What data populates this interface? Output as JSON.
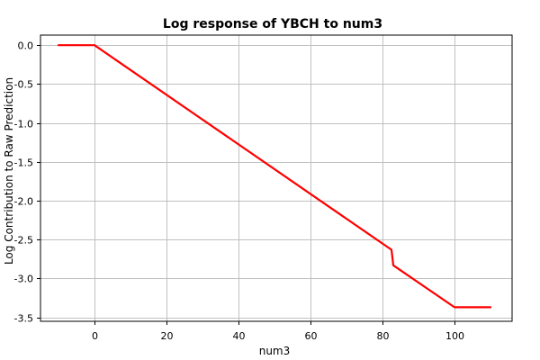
{
  "chart_data": {
    "type": "line",
    "title": "Log response of YBCH to num3",
    "xlabel": "num3",
    "ylabel": "Log Contribution to Raw Prediction",
    "xlim": [
      -15,
      116
    ],
    "ylim": [
      -3.55,
      0.13
    ],
    "x_ticks": [
      0,
      20,
      40,
      60,
      80,
      100
    ],
    "x_tick_labels": [
      "0",
      "20",
      "40",
      "60",
      "80",
      "100"
    ],
    "y_ticks": [
      0.0,
      -0.5,
      -1.0,
      -1.5,
      -2.0,
      -2.5,
      -3.0,
      -3.5
    ],
    "y_tick_labels": [
      "0.0",
      "-0.5",
      "-1.0",
      "-1.5",
      "-2.0",
      "-2.5",
      "-3.0",
      "-3.5"
    ],
    "grid": true,
    "series": [
      {
        "color": "#ff0000",
        "x": [
          -10,
          0,
          82.5,
          83,
          100,
          110
        ],
        "y": [
          0.0,
          0.0,
          -2.63,
          -2.83,
          -3.37,
          -3.37
        ]
      }
    ]
  }
}
